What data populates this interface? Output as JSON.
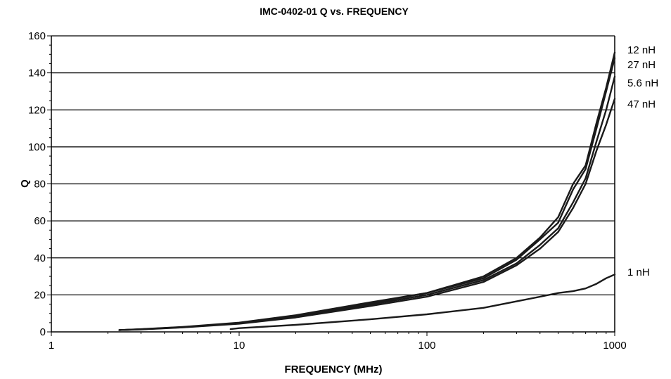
{
  "chart_data": {
    "type": "line",
    "title": "IMC-0402-01 Q vs. FREQUENCY",
    "xlabel": "FREQUENCY (MHz)",
    "ylabel": "Q",
    "x_scale": "log",
    "xlim": [
      1,
      1000
    ],
    "ylim": [
      0,
      160
    ],
    "x_ticks": [
      1,
      10,
      100,
      1000
    ],
    "x_tick_labels": [
      "1",
      "10",
      "100",
      "1000"
    ],
    "y_ticks": [
      0,
      20,
      40,
      60,
      80,
      100,
      120,
      140,
      160
    ],
    "y_tick_labels": [
      "0",
      "20",
      "40",
      "60",
      "80",
      "100",
      "120",
      "140",
      "160"
    ],
    "grid": "horizontal",
    "legend": "series labels at right end of lines",
    "series": [
      {
        "name": "12 nH",
        "x": [
          2.3,
          3,
          5,
          10,
          20,
          50,
          100,
          200,
          300,
          400,
          500,
          600,
          700,
          800,
          900,
          1000
        ],
        "y": [
          1,
          1.5,
          2.7,
          5,
          9,
          16,
          21,
          30,
          40,
          51,
          62,
          80,
          90,
          113,
          132,
          151
        ]
      },
      {
        "name": "27 nH",
        "x": [
          2.3,
          3,
          5,
          10,
          20,
          50,
          100,
          200,
          300,
          400,
          500,
          600,
          700,
          800,
          900,
          1000
        ],
        "y": [
          1,
          1.4,
          2.6,
          4.8,
          8.6,
          15.5,
          21,
          29,
          39,
          50,
          59,
          77,
          88,
          110,
          130,
          148
        ]
      },
      {
        "name": "5.6 nH",
        "x": [
          2.3,
          3,
          5,
          10,
          20,
          50,
          100,
          200,
          300,
          400,
          500,
          600,
          700,
          800,
          900,
          1000
        ],
        "y": [
          1,
          1.4,
          2.5,
          4.6,
          8.2,
          14.8,
          20,
          28,
          37,
          47,
          56,
          70,
          83,
          103,
          120,
          138
        ]
      },
      {
        "name": "47 nH",
        "x": [
          2.3,
          3,
          5,
          10,
          20,
          50,
          100,
          200,
          300,
          400,
          500,
          600,
          700,
          800,
          900,
          1000
        ],
        "y": [
          1,
          1.3,
          2.4,
          4.4,
          7.8,
          14,
          19,
          27,
          36,
          45,
          54,
          67,
          80,
          98,
          112,
          126
        ]
      },
      {
        "name": "1 nH",
        "x": [
          9,
          10,
          20,
          50,
          100,
          200,
          300,
          400,
          500,
          600,
          700,
          800,
          900,
          1000
        ],
        "y": [
          1.5,
          2,
          3.8,
          6.8,
          9.5,
          13,
          16.5,
          19,
          21,
          22,
          23.5,
          26,
          29,
          31
        ]
      }
    ],
    "colors": {
      "line": "#1a1a1a",
      "grid": "#000000",
      "background": "#ffffff"
    }
  }
}
